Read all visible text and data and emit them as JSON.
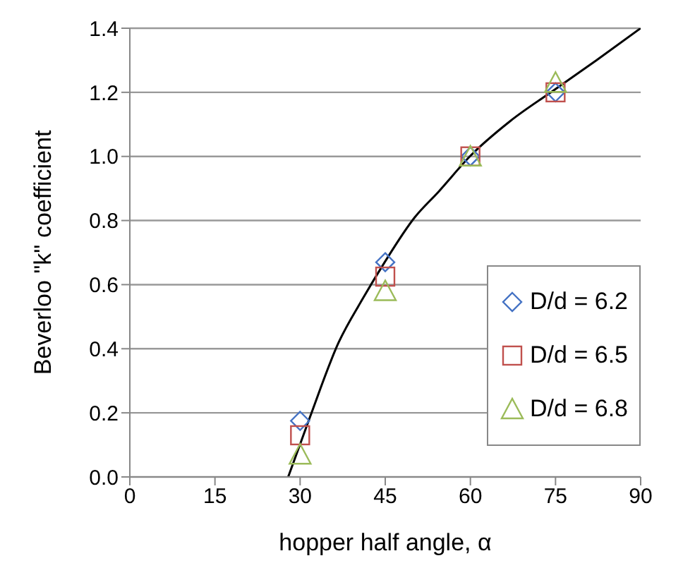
{
  "chart_data": {
    "type": "scatter",
    "xlabel": "hopper half angle, α",
    "ylabel": "Beverloo \"k\" coefficient",
    "xlim": [
      0,
      90
    ],
    "xticks": [
      0,
      15,
      30,
      45,
      60,
      75,
      90
    ],
    "ylim": [
      0,
      1.4
    ],
    "yticks": [
      {
        "value": 0,
        "label": "0.0"
      },
      {
        "value": 0.2,
        "label": "0.2"
      },
      {
        "value": 0.4,
        "label": "0.4"
      },
      {
        "value": 0.6,
        "label": "0.6"
      },
      {
        "value": 0.8,
        "label": "0.8"
      },
      {
        "value": 1,
        "label": "1.0"
      },
      {
        "value": 1.2,
        "label": "1.2"
      },
      {
        "value": 1.4,
        "label": "1.4"
      }
    ],
    "grid": "y",
    "legend": "bottom right",
    "x": [
      30,
      45,
      60,
      75
    ],
    "series": [
      {
        "name": "D/d = 6.2",
        "color": "#4472c4",
        "marker": "diamond",
        "values": [
          0.175,
          0.67,
          1.0,
          1.2
        ]
      },
      {
        "name": "D/d = 6.5",
        "color": "#c0504d",
        "marker": "square",
        "values": [
          0.13,
          0.625,
          1.0,
          1.2
        ]
      },
      {
        "name": "D/d = 6.8",
        "color": "#9bbb59",
        "marker": "triangle",
        "values": [
          0.07,
          0.58,
          1.0,
          1.23
        ]
      },
      {
        "type": "line",
        "color": "#000000",
        "marker": "none",
        "x": [
          27.9,
          31.7,
          36.8,
          41,
          44.9,
          50.2,
          54.4,
          59.9,
          67,
          75,
          82.2,
          90
        ],
        "values": [
          0,
          0.185,
          0.42,
          0.555,
          0.67,
          0.81,
          0.89,
          1.0,
          1.11,
          1.21,
          1.3,
          1.4
        ]
      }
    ]
  }
}
